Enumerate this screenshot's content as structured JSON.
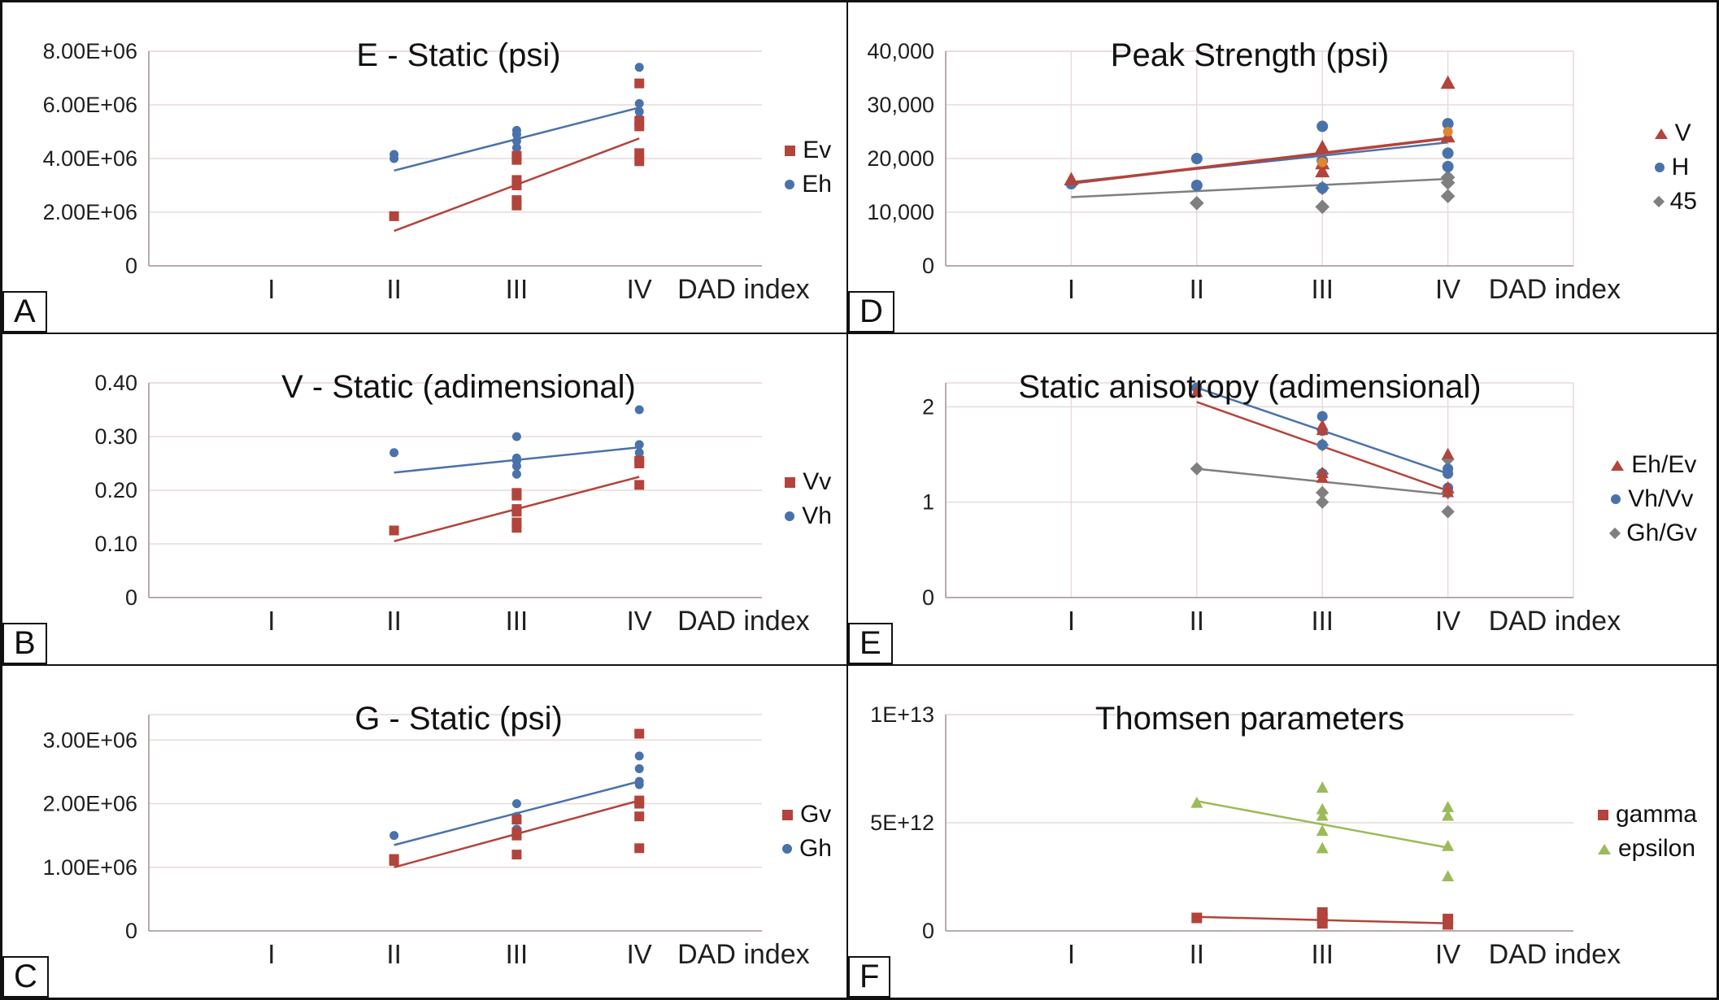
{
  "chart_data": [
    {
      "type": "scatter",
      "label": "A",
      "title": "E - Static (psi)",
      "xlabel": "DAD index",
      "categories": [
        "I",
        "II",
        "III",
        "IV"
      ],
      "ylim": [
        0,
        8000000
      ],
      "yticks": [
        {
          "v": 0,
          "t": "0"
        },
        {
          "v": 2000000,
          "t": "2.00E+06"
        },
        {
          "v": 4000000,
          "t": "4.00E+06"
        },
        {
          "v": 6000000,
          "t": "6.00E+06"
        },
        {
          "v": 8000000,
          "t": "8.00E+06"
        }
      ],
      "vgrid": false,
      "series": [
        {
          "name": "Ev",
          "marker": "square",
          "color": "#b2443c",
          "points": [
            [
              2,
              1850000
            ],
            [
              3,
              2250000
            ],
            [
              3,
              2450000
            ],
            [
              3,
              3000000
            ],
            [
              3,
              3200000
            ],
            [
              3,
              3950000
            ],
            [
              3,
              4100000
            ],
            [
              4,
              3900000
            ],
            [
              4,
              4200000
            ],
            [
              4,
              5200000
            ],
            [
              4,
              5400000
            ],
            [
              4,
              6800000
            ]
          ],
          "trend": [
            [
              2,
              1300000
            ],
            [
              4,
              4750000
            ]
          ]
        },
        {
          "name": "Eh",
          "marker": "circle",
          "color": "#4a72aa",
          "points": [
            [
              2,
              4000000
            ],
            [
              2,
              4150000
            ],
            [
              3,
              4400000
            ],
            [
              3,
              4650000
            ],
            [
              3,
              4900000
            ],
            [
              3,
              5050000
            ],
            [
              4,
              5500000
            ],
            [
              4,
              5750000
            ],
            [
              4,
              6050000
            ],
            [
              4,
              7400000
            ]
          ],
          "trend": [
            [
              2,
              3550000
            ],
            [
              4,
              5900000
            ]
          ]
        }
      ]
    },
    {
      "type": "scatter",
      "label": "B",
      "title": "V - Static (adimensional)",
      "xlabel": "DAD index",
      "categories": [
        "I",
        "II",
        "III",
        "IV"
      ],
      "ylim": [
        0,
        0.4
      ],
      "yticks": [
        {
          "v": 0,
          "t": "0"
        },
        {
          "v": 0.1,
          "t": "0.10"
        },
        {
          "v": 0.2,
          "t": "0.20"
        },
        {
          "v": 0.3,
          "t": "0.30"
        },
        {
          "v": 0.4,
          "t": "0.40"
        }
      ],
      "vgrid": false,
      "series": [
        {
          "name": "Vv",
          "marker": "square",
          "color": "#b2443c",
          "points": [
            [
              2,
              0.125
            ],
            [
              3,
              0.13
            ],
            [
              3,
              0.14
            ],
            [
              3,
              0.16
            ],
            [
              3,
              0.165
            ],
            [
              3,
              0.19
            ],
            [
              3,
              0.195
            ],
            [
              4,
              0.21
            ],
            [
              4,
              0.25
            ],
            [
              4,
              0.255
            ]
          ],
          "trend": [
            [
              2,
              0.105
            ],
            [
              4,
              0.225
            ]
          ]
        },
        {
          "name": "Vh",
          "marker": "circle",
          "color": "#4a72aa",
          "points": [
            [
              2,
              0.27
            ],
            [
              3,
              0.23
            ],
            [
              3,
              0.245
            ],
            [
              3,
              0.255
            ],
            [
              3,
              0.26
            ],
            [
              3,
              0.3
            ],
            [
              4,
              0.27
            ],
            [
              4,
              0.285
            ],
            [
              4,
              0.35
            ]
          ],
          "trend": [
            [
              2,
              0.233
            ],
            [
              4,
              0.28
            ]
          ]
        }
      ]
    },
    {
      "type": "scatter",
      "label": "C",
      "title": "G - Static (psi)",
      "xlabel": "DAD index",
      "categories": [
        "I",
        "II",
        "III",
        "IV"
      ],
      "ylim": [
        0,
        3400000
      ],
      "yticks": [
        {
          "v": 0,
          "t": "0"
        },
        {
          "v": 1000000,
          "t": "1.00E+06"
        },
        {
          "v": 2000000,
          "t": "2.00E+06"
        },
        {
          "v": 3000000,
          "t": "3.00E+06"
        }
      ],
      "vgrid": false,
      "series": [
        {
          "name": "Gv",
          "marker": "square",
          "color": "#b2443c",
          "points": [
            [
              2,
              1100000
            ],
            [
              2,
              1130000
            ],
            [
              3,
              1200000
            ],
            [
              3,
              1500000
            ],
            [
              3,
              1550000
            ],
            [
              3,
              1750000
            ],
            [
              4,
              1300000
            ],
            [
              4,
              1800000
            ],
            [
              4,
              2000000
            ],
            [
              4,
              2050000
            ],
            [
              4,
              3100000
            ]
          ],
          "trend": [
            [
              2,
              1000000
            ],
            [
              4,
              2050000
            ]
          ]
        },
        {
          "name": "Gh",
          "marker": "circle",
          "color": "#4a72aa",
          "points": [
            [
              2,
              1500000
            ],
            [
              3,
              1600000
            ],
            [
              3,
              1800000
            ],
            [
              3,
              2000000
            ],
            [
              4,
              2300000
            ],
            [
              4,
              2350000
            ],
            [
              4,
              2550000
            ],
            [
              4,
              2750000
            ]
          ],
          "trend": [
            [
              2,
              1350000
            ],
            [
              4,
              2350000
            ]
          ]
        }
      ]
    },
    {
      "type": "scatter",
      "label": "D",
      "title": "Peak Strength (psi)",
      "xlabel": "DAD index",
      "categories": [
        "I",
        "II",
        "III",
        "IV"
      ],
      "ylim": [
        0,
        40000
      ],
      "yticks": [
        {
          "v": 0,
          "t": "0"
        },
        {
          "v": 10000,
          "t": "10,000"
        },
        {
          "v": 20000,
          "t": "20,000"
        },
        {
          "v": 30000,
          "t": "30,000"
        },
        {
          "v": 40000,
          "t": "40,000"
        }
      ],
      "vgrid": true,
      "series": [
        {
          "name": "",
          "legend": false,
          "marker": "circle",
          "color": "#e0862e",
          "size": 12,
          "points": [
            [
              3,
              19300
            ],
            [
              4,
              25000
            ]
          ]
        },
        {
          "name": "V",
          "marker": "triangle",
          "color": "#b2443c",
          "size": 18,
          "points": [
            [
              1,
              16000
            ],
            [
              3,
              17500
            ],
            [
              3,
              19000
            ],
            [
              3,
              22000
            ],
            [
              4,
              24000
            ],
            [
              4,
              34000
            ]
          ],
          "trend": [
            [
              1,
              15400
            ],
            [
              4,
              23800
            ]
          ],
          "trend_width": 3.5
        },
        {
          "name": "H",
          "marker": "circle",
          "color": "#4a72aa",
          "size": 14,
          "points": [
            [
              1,
              15300
            ],
            [
              2,
              15000
            ],
            [
              2,
              20000
            ],
            [
              3,
              14500
            ],
            [
              3,
              19600
            ],
            [
              3,
              26000
            ],
            [
              4,
              18500
            ],
            [
              4,
              21000
            ],
            [
              4,
              26500
            ]
          ],
          "trend": [
            [
              1,
              15600
            ],
            [
              4,
              23000
            ]
          ]
        },
        {
          "name": "45",
          "marker": "diamond",
          "color": "#7f7f7f",
          "size": 13,
          "points": [
            [
              2,
              11700
            ],
            [
              3,
              11000
            ],
            [
              3,
              14500
            ],
            [
              4,
              13000
            ],
            [
              4,
              15500
            ],
            [
              4,
              16500
            ]
          ],
          "trend": [
            [
              1,
              12800
            ],
            [
              4,
              16200
            ]
          ]
        }
      ]
    },
    {
      "type": "scatter",
      "label": "E",
      "title": "Static anisotropy (adimensional)",
      "xlabel": "DAD index",
      "categories": [
        "I",
        "II",
        "III",
        "IV"
      ],
      "ylim": [
        0,
        2.25
      ],
      "yticks": [
        {
          "v": 0,
          "t": "0"
        },
        {
          "v": 1,
          "t": "1"
        },
        {
          "v": 2,
          "t": "2"
        }
      ],
      "vgrid": true,
      "series": [
        {
          "name": "Eh/Ev",
          "marker": "triangle",
          "color": "#b2443c",
          "size": 15,
          "points": [
            [
              2,
              2.15
            ],
            [
              3,
              1.25
            ],
            [
              3,
              1.3
            ],
            [
              3,
              1.75
            ],
            [
              3,
              1.8
            ],
            [
              4,
              1.1
            ],
            [
              4,
              1.15
            ],
            [
              4,
              1.5
            ]
          ],
          "trend": [
            [
              2,
              2.05
            ],
            [
              4,
              1.12
            ]
          ]
        },
        {
          "name": "Vh/Vv",
          "marker": "circle",
          "color": "#4a72aa",
          "size": 13,
          "points": [
            [
              2,
              2.2
            ],
            [
              3,
              1.3
            ],
            [
              3,
              1.6
            ],
            [
              3,
              1.75
            ],
            [
              3,
              1.9
            ],
            [
              4,
              1.15
            ],
            [
              4,
              1.3
            ],
            [
              4,
              1.35
            ]
          ],
          "trend": [
            [
              2,
              2.2
            ],
            [
              4,
              1.3
            ]
          ]
        },
        {
          "name": "Gh/Gv",
          "marker": "diamond",
          "color": "#7f7f7f",
          "size": 12,
          "points": [
            [
              2,
              1.35
            ],
            [
              3,
              1.0
            ],
            [
              3,
              1.1
            ],
            [
              3,
              1.3
            ],
            [
              3,
              1.6
            ],
            [
              4,
              0.9
            ],
            [
              4,
              1.1
            ],
            [
              4,
              1.45
            ]
          ],
          "trend": [
            [
              2,
              1.35
            ],
            [
              4,
              1.08
            ]
          ]
        }
      ]
    },
    {
      "type": "scatter",
      "label": "F",
      "title": "Thomsen parameters",
      "xlabel": "DAD index",
      "categories": [
        "I",
        "II",
        "III",
        "IV"
      ],
      "ylim": [
        0,
        10000000000000.0
      ],
      "yticks": [
        {
          "v": 0,
          "t": "0"
        },
        {
          "v": 5000000000000.0,
          "t": "5E+12"
        },
        {
          "v": 10000000000000.0,
          "t": "1E+13"
        }
      ],
      "vgrid": false,
      "series": [
        {
          "name": "gamma",
          "marker": "square",
          "color": "#b2443c",
          "size": 13,
          "points": [
            [
              2,
              600000000000.0
            ],
            [
              3,
              350000000000.0
            ],
            [
              3,
              600000000000.0
            ],
            [
              3,
              850000000000.0
            ],
            [
              4,
              300000000000.0
            ],
            [
              4,
              550000000000.0
            ]
          ],
          "trend": [
            [
              2,
              650000000000.0
            ],
            [
              4,
              350000000000.0
            ]
          ]
        },
        {
          "name": "epsilon",
          "marker": "triangle",
          "color": "#9bbb59",
          "size": 15,
          "points": [
            [
              2,
              5900000000000.0
            ],
            [
              3,
              3800000000000.0
            ],
            [
              3,
              4600000000000.0
            ],
            [
              3,
              5300000000000.0
            ],
            [
              3,
              5600000000000.0
            ],
            [
              3,
              6600000000000.0
            ],
            [
              4,
              2500000000000.0
            ],
            [
              4,
              3900000000000.0
            ],
            [
              4,
              5300000000000.0
            ],
            [
              4,
              5700000000000.0
            ]
          ],
          "trend": [
            [
              2,
              6000000000000.0
            ],
            [
              4,
              3850000000000.0
            ]
          ]
        }
      ]
    }
  ],
  "style": {
    "grid_color": "#e8dada",
    "axis_color": "#b3a1a1"
  }
}
